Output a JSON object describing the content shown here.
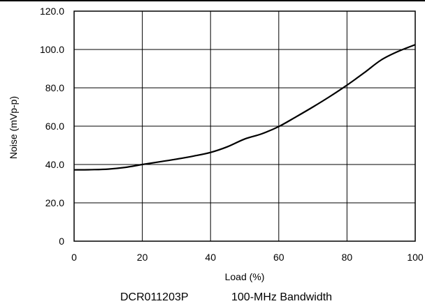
{
  "chart_data": {
    "type": "line",
    "title": "",
    "xlabel": "Load (%)",
    "ylabel": "Noise (mVp-p)",
    "xlim": [
      0,
      100
    ],
    "ylim": [
      0,
      120
    ],
    "x_ticks": [
      0,
      20,
      40,
      60,
      80,
      100
    ],
    "y_ticks": [
      0,
      20,
      40,
      60,
      80,
      100,
      120
    ],
    "x_tick_labels": [
      "0",
      "20",
      "40",
      "60",
      "80",
      "100"
    ],
    "y_tick_labels": [
      "0",
      "20.0",
      "40.0",
      "60.0",
      "80.0",
      "100.0",
      "120.0"
    ],
    "grid": true,
    "series": [
      {
        "color": "#000000",
        "x": [
          0,
          5,
          10,
          15,
          20,
          25,
          30,
          35,
          40,
          45,
          50,
          55,
          60,
          65,
          70,
          75,
          80,
          85,
          90,
          95,
          100
        ],
        "y": [
          37.2,
          37.3,
          37.6,
          38.5,
          40.0,
          41.4,
          42.8,
          44.4,
          46.3,
          49.3,
          53.3,
          56.0,
          59.8,
          64.8,
          70.0,
          75.5,
          81.4,
          87.8,
          94.5,
          99.0,
          102.5
        ]
      }
    ],
    "caption": {
      "part": "DCR011203P",
      "bandwidth": "100-MHz Bandwidth"
    }
  }
}
